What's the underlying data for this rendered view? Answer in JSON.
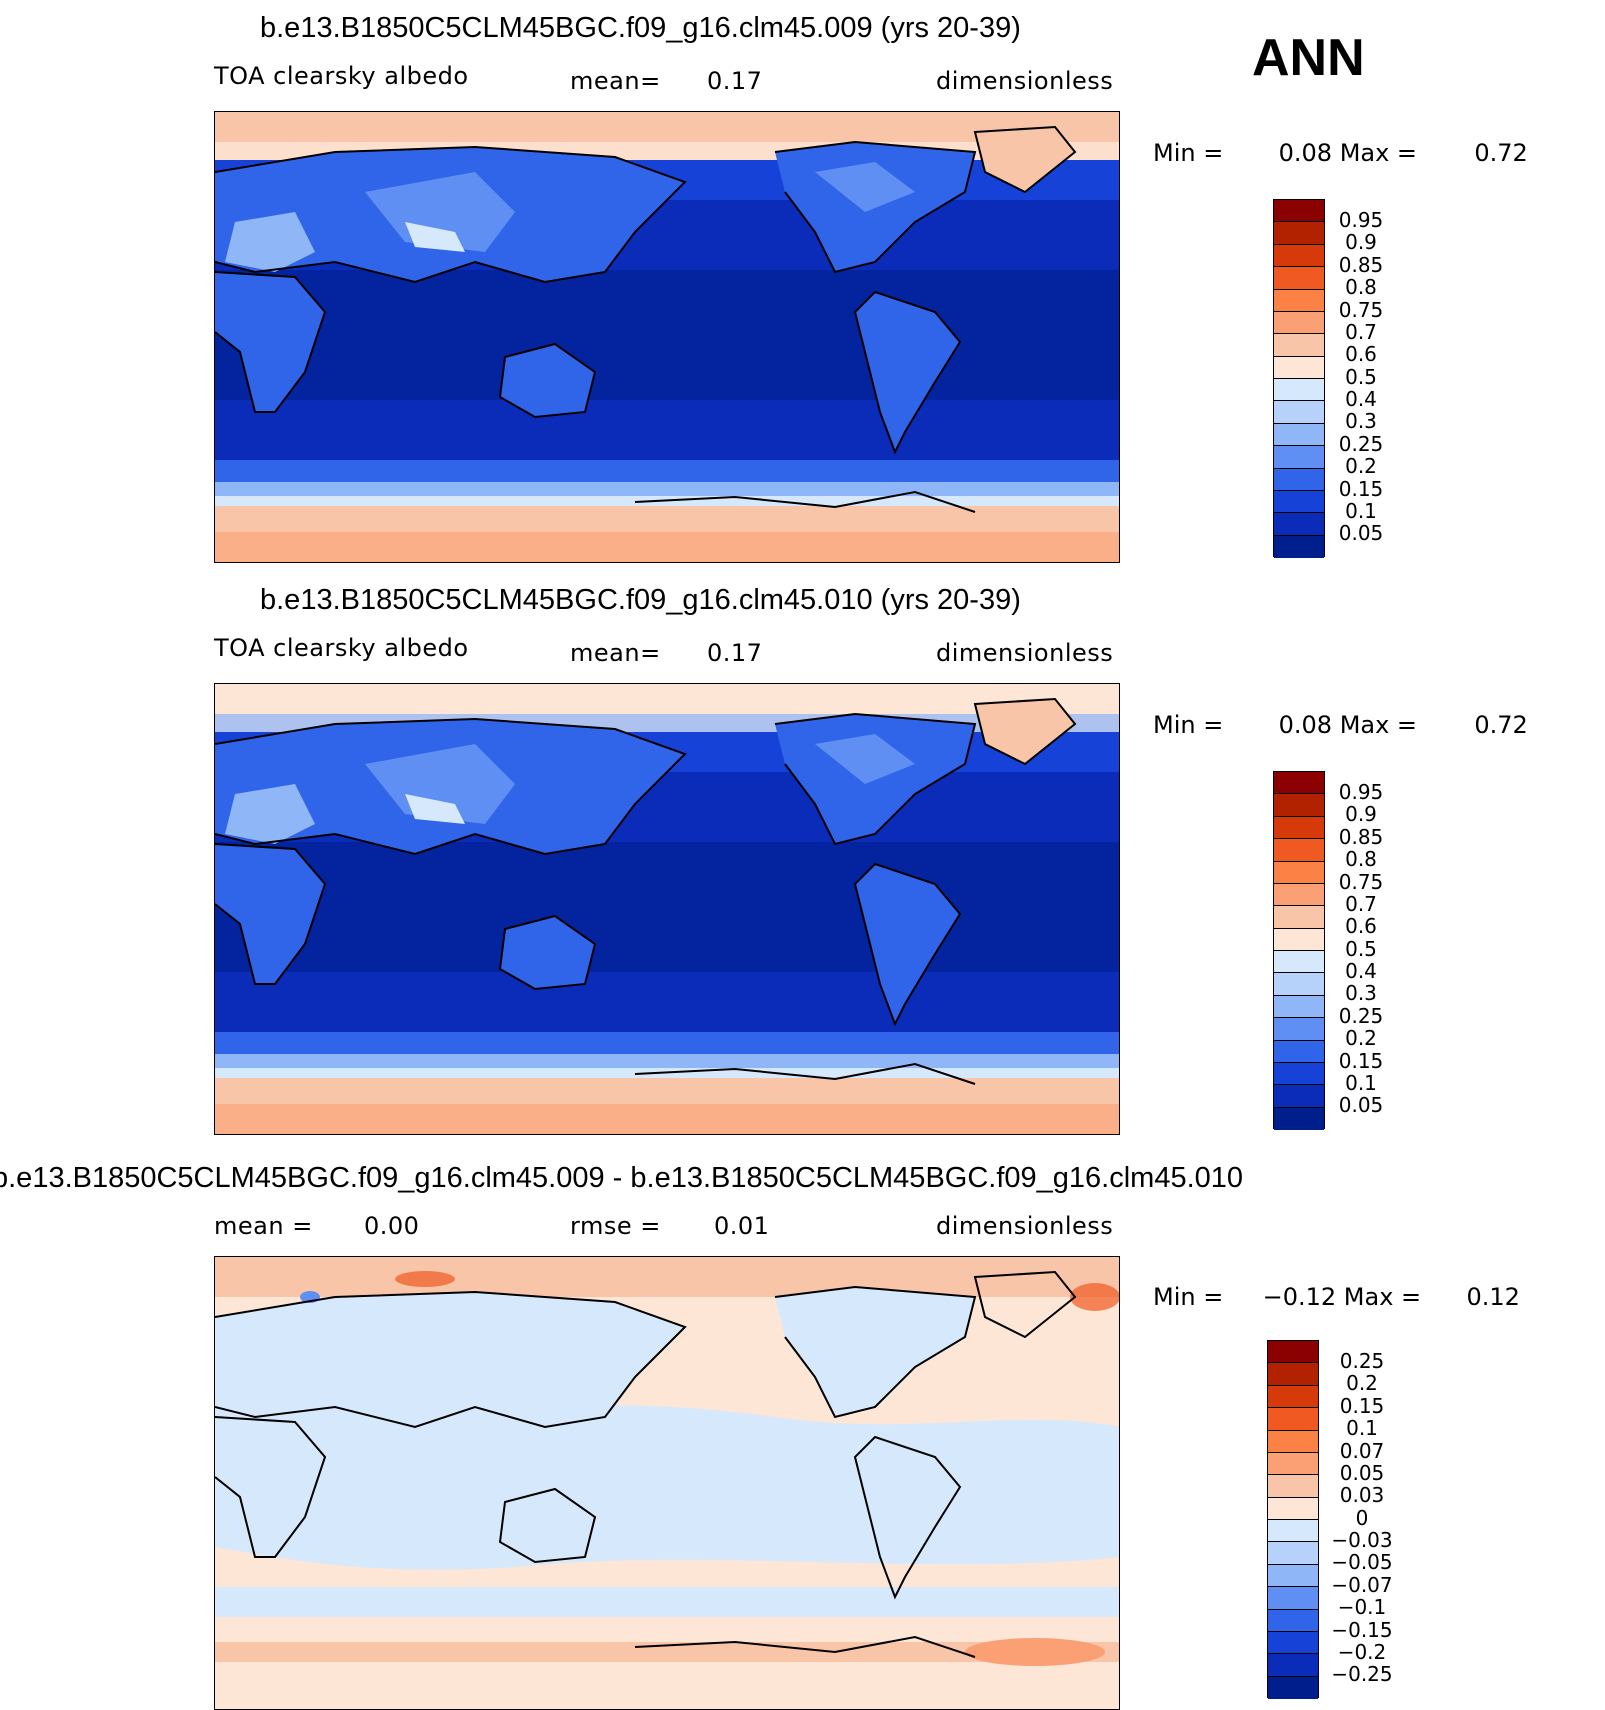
{
  "season": "ANN",
  "panels": [
    {
      "title": "b.e13.B1850C5CLM45BGC.f09_g16.clm45.009 (yrs 20-39)",
      "left_label": "TOA clearsky albedo",
      "mid_label": "mean=",
      "mid_value": "0.17",
      "right_label": "dimensionless",
      "min_label": "Min =",
      "min_value": "0.08",
      "max_label": "Max =",
      "max_value": "0.72"
    },
    {
      "title": "b.e13.B1850C5CLM45BGC.f09_g16.clm45.010 (yrs 20-39)",
      "left_label": "TOA clearsky albedo",
      "mid_label": "mean=",
      "mid_value": "0.17",
      "right_label": "dimensionless",
      "min_label": "Min =",
      "min_value": "0.08",
      "max_label": "Max =",
      "max_value": "0.72"
    },
    {
      "title": "b.e13.B1850C5CLM45BGC.f09_g16.clm45.009 - b.e13.B1850C5CLM45BGC.f09_g16.clm45.010",
      "left_label": "mean =",
      "left_value": "0.00",
      "mid_label": "rmse =",
      "mid_value": "0.01",
      "right_label": "dimensionless",
      "min_label": "Min =",
      "min_value": "−0.12",
      "max_label": "Max =",
      "max_value": "0.12"
    }
  ],
  "colorbar_abs": {
    "labels": [
      "0.95",
      "0.9",
      "0.85",
      "0.8",
      "0.75",
      "0.7",
      "0.6",
      "0.5",
      "0.4",
      "0.3",
      "0.25",
      "0.2",
      "0.15",
      "0.1",
      "0.05"
    ],
    "colors": [
      "#8b0000",
      "#b22200",
      "#d63a0a",
      "#f05a22",
      "#fb8144",
      "#fba075",
      "#f9c5a8",
      "#fde6d6",
      "#d6e8fb",
      "#b6d2fa",
      "#8fb6f7",
      "#5f8ff2",
      "#3065ea",
      "#1742d8",
      "#0a2cb8",
      "#001e8c"
    ]
  },
  "colorbar_diff": {
    "labels": [
      "0.25",
      "0.2",
      "0.15",
      "0.1",
      "0.07",
      "0.05",
      "0.03",
      "0",
      "−0.03",
      "−0.05",
      "−0.07",
      "−0.1",
      "−0.15",
      "−0.2",
      "−0.25"
    ],
    "colors": [
      "#8b0000",
      "#b22200",
      "#d63a0a",
      "#f05a22",
      "#fb8144",
      "#fba075",
      "#f9c5a8",
      "#fde6d6",
      "#d6e8fb",
      "#b6d2fa",
      "#8fb6f7",
      "#5f8ff2",
      "#3065ea",
      "#1742d8",
      "#0a2cb8",
      "#001e8c"
    ]
  },
  "chart_data": [
    {
      "type": "heatmap",
      "title": "b.e13.B1850C5CLM45BGC.f09_g16.clm45.009 (yrs 20-39)",
      "variable": "TOA clearsky albedo",
      "units": "dimensionless",
      "mean": 0.17,
      "min": 0.08,
      "max": 0.72,
      "levels": [
        0.05,
        0.1,
        0.15,
        0.2,
        0.25,
        0.3,
        0.4,
        0.5,
        0.6,
        0.7,
        0.75,
        0.8,
        0.85,
        0.9,
        0.95
      ]
    },
    {
      "type": "heatmap",
      "title": "b.e13.B1850C5CLM45BGC.f09_g16.clm45.010 (yrs 20-39)",
      "variable": "TOA clearsky albedo",
      "units": "dimensionless",
      "mean": 0.17,
      "min": 0.08,
      "max": 0.72,
      "levels": [
        0.05,
        0.1,
        0.15,
        0.2,
        0.25,
        0.3,
        0.4,
        0.5,
        0.6,
        0.7,
        0.75,
        0.8,
        0.85,
        0.9,
        0.95
      ]
    },
    {
      "type": "heatmap",
      "title": "b.e13.B1850C5CLM45BGC.f09_g16.clm45.009 - b.e13.B1850C5CLM45BGC.f09_g16.clm45.010",
      "units": "dimensionless",
      "mean": 0.0,
      "rmse": 0.01,
      "min": -0.12,
      "max": 0.12,
      "levels": [
        -0.25,
        -0.2,
        -0.15,
        -0.1,
        -0.07,
        -0.05,
        -0.03,
        0,
        0.03,
        0.05,
        0.07,
        0.1,
        0.15,
        0.2,
        0.25
      ]
    }
  ]
}
